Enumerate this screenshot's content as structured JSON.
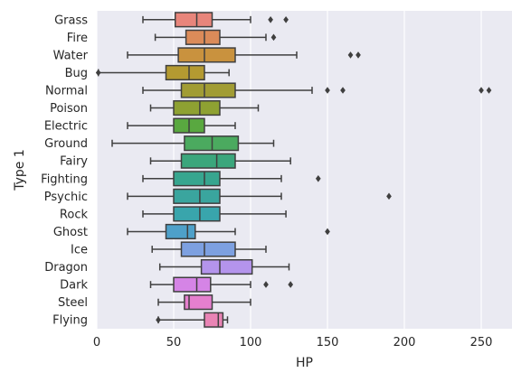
{
  "chart_data": {
    "type": "boxplot",
    "orientation": "horizontal",
    "xlabel": "HP",
    "ylabel": "Type 1",
    "xlim": [
      0,
      270
    ],
    "xticks": [
      0,
      50,
      100,
      150,
      200,
      250
    ],
    "grid": true,
    "colors": {
      "background": "#EAEAF2",
      "grid": "#FFFFFF",
      "line": "#3F3F3F"
    },
    "categories": [
      "Grass",
      "Fire",
      "Water",
      "Bug",
      "Normal",
      "Poison",
      "Electric",
      "Ground",
      "Fairy",
      "Fighting",
      "Psychic",
      "Rock",
      "Ghost",
      "Ice",
      "Dragon",
      "Dark",
      "Steel",
      "Flying"
    ],
    "series": [
      {
        "category": "Grass",
        "color": "#E8857B",
        "whisker_low": 30,
        "q1": 51,
        "median": 65,
        "q3": 75,
        "whisker_high": 100,
        "outliers": [
          113,
          123
        ]
      },
      {
        "category": "Fire",
        "color": "#DB8B59",
        "whisker_low": 38,
        "q1": 58,
        "median": 70,
        "q3": 80,
        "whisker_high": 110,
        "outliers": [
          115
        ]
      },
      {
        "category": "Water",
        "color": "#C9923E",
        "whisker_low": 20,
        "q1": 53,
        "median": 70,
        "q3": 90,
        "whisker_high": 130,
        "outliers": [
          165,
          170
        ]
      },
      {
        "category": "Bug",
        "color": "#B49A31",
        "whisker_low": 1,
        "q1": 45,
        "median": 60,
        "q3": 70,
        "whisker_high": 86,
        "outliers": [
          1
        ]
      },
      {
        "category": "Normal",
        "color": "#A19C34",
        "whisker_low": 30,
        "q1": 55,
        "median": 70,
        "q3": 90,
        "whisker_high": 140,
        "outliers": [
          150,
          160,
          250,
          255
        ]
      },
      {
        "category": "Poison",
        "color": "#8EA132",
        "whisker_low": 35,
        "q1": 50,
        "median": 67,
        "q3": 80,
        "whisker_high": 105,
        "outliers": []
      },
      {
        "category": "Electric",
        "color": "#59A840",
        "whisker_low": 20,
        "q1": 50,
        "median": 60,
        "q3": 70,
        "whisker_high": 90,
        "outliers": []
      },
      {
        "category": "Ground",
        "color": "#4BAA5F",
        "whisker_low": 10,
        "q1": 57,
        "median": 75,
        "q3": 92,
        "whisker_high": 115,
        "outliers": []
      },
      {
        "category": "Fairy",
        "color": "#3BA67C",
        "whisker_low": 35,
        "q1": 55,
        "median": 78,
        "q3": 90,
        "whisker_high": 126,
        "outliers": []
      },
      {
        "category": "Fighting",
        "color": "#37A68F",
        "whisker_low": 30,
        "q1": 50,
        "median": 70,
        "q3": 80,
        "whisker_high": 120,
        "outliers": [
          144
        ]
      },
      {
        "category": "Psychic",
        "color": "#3AA59E",
        "whisker_low": 20,
        "q1": 50,
        "median": 67,
        "q3": 80,
        "whisker_high": 120,
        "outliers": [
          190
        ]
      },
      {
        "category": "Rock",
        "color": "#39A5AC",
        "whisker_low": 30,
        "q1": 50,
        "median": 67,
        "q3": 80,
        "whisker_high": 123,
        "outliers": []
      },
      {
        "category": "Ghost",
        "color": "#4EA0C9",
        "whisker_low": 20,
        "q1": 45,
        "median": 59,
        "q3": 64,
        "whisker_high": 90,
        "outliers": [
          150
        ]
      },
      {
        "category": "Ice",
        "color": "#7DA0E0",
        "whisker_low": 36,
        "q1": 55,
        "median": 70,
        "q3": 90,
        "whisker_high": 110,
        "outliers": []
      },
      {
        "category": "Dragon",
        "color": "#B494EC",
        "whisker_low": 41,
        "q1": 68,
        "median": 80,
        "q3": 101,
        "whisker_high": 125,
        "outliers": []
      },
      {
        "category": "Dark",
        "color": "#D584E6",
        "whisker_low": 35,
        "q1": 50,
        "median": 65,
        "q3": 74,
        "whisker_high": 100,
        "outliers": [
          110,
          126
        ]
      },
      {
        "category": "Steel",
        "color": "#E57FCE",
        "whisker_low": 40,
        "q1": 57,
        "median": 60,
        "q3": 75,
        "whisker_high": 100,
        "outliers": []
      },
      {
        "category": "Flying",
        "color": "#E984B5",
        "whisker_low": 40,
        "q1": 70,
        "median": 79,
        "q3": 82,
        "whisker_high": 85,
        "outliers": [
          40
        ]
      }
    ]
  }
}
